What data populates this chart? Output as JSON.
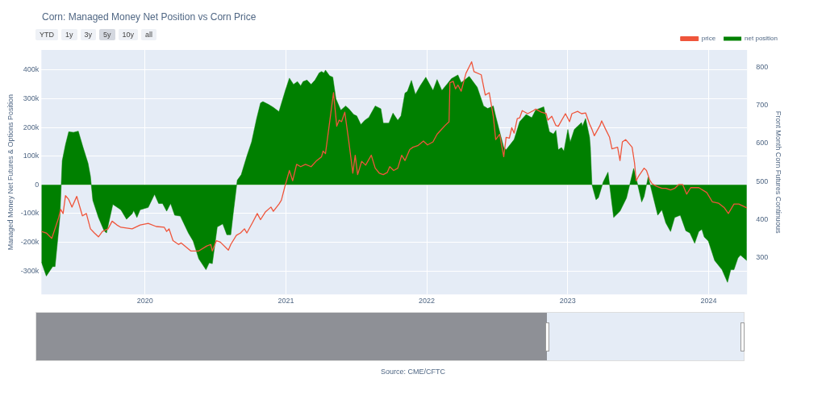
{
  "chart_data": {
    "type": "area",
    "title": "Corn: Managed Money Net Position vs Corn Price",
    "ylabel": "Managed Money Net Futures & Options Position",
    "y2label": "Front Month Corn Futures Continuous",
    "annotations": [
      "YTD",
      "1y",
      "3y",
      "5y",
      "10y",
      "all",
      "Source: CME/CFTC"
    ],
    "xlim": [
      2019.265,
      2024.273
    ],
    "xticks": [
      2020,
      2021,
      2022,
      2023,
      2024
    ],
    "ylim": [
      -382000,
      470000
    ],
    "yticks": [
      {
        "value": -300000,
        "label": "-300k"
      },
      {
        "value": -200000,
        "label": "-200k"
      },
      {
        "value": -100000,
        "label": "-100k"
      },
      0,
      {
        "value": 100000,
        "label": "100k"
      },
      {
        "value": 200000,
        "label": "200k"
      },
      {
        "value": 300000,
        "label": "300k"
      },
      {
        "value": 400000,
        "label": "400k"
      }
    ],
    "y2lim": [
      204,
      845
    ],
    "y2ticks": [
      300,
      400,
      500,
      600,
      700,
      800
    ],
    "grid": true,
    "legend": "top right",
    "marker": "none",
    "series": [
      {
        "name": "price",
        "type": "line",
        "axis": "y2",
        "color": "#ef553b",
        "x": [
          2019.265,
          2019.3,
          2019.339,
          2019.385,
          2019.402,
          2019.419,
          2019.436,
          2019.459,
          2019.482,
          2019.516,
          2019.556,
          2019.584,
          2019.613,
          2019.641,
          2019.67,
          2019.698,
          2019.738,
          2019.767,
          2019.801,
          2019.829,
          2019.909,
          2019.966,
          2020.023,
          2020.08,
          2020.137,
          2020.154,
          2020.171,
          2020.199,
          2020.239,
          2020.256,
          2020.325,
          2020.382,
          2020.439,
          2020.467,
          2020.478,
          2020.507,
          2020.535,
          2020.592,
          2020.609,
          2020.649,
          2020.678,
          2020.706,
          2020.723,
          2020.763,
          2020.797,
          2020.82,
          2020.854,
          2020.894,
          2020.911,
          2020.951,
          2020.968,
          2020.991,
          2021.025,
          2021.048,
          2021.076,
          2021.105,
          2021.139,
          2021.179,
          2021.219,
          2021.253,
          2021.264,
          2021.281,
          2021.338,
          2021.361,
          2021.378,
          2021.395,
          2021.418,
          2021.447,
          2021.475,
          2021.492,
          2021.509,
          2021.538,
          2021.566,
          2021.606,
          2021.634,
          2021.663,
          2021.691,
          2021.72,
          2021.737,
          2021.765,
          2021.794,
          2021.822,
          2021.845,
          2021.879,
          2021.902,
          2021.936,
          2021.976,
          2022.005,
          2022.044,
          2022.073,
          2022.09,
          2022.13,
          2022.158,
          2022.164,
          2022.187,
          2022.204,
          2022.221,
          2022.244,
          2022.278,
          2022.318,
          2022.335,
          2022.386,
          2022.415,
          2022.443,
          2022.472,
          2022.489,
          2022.517,
          2022.546,
          2022.563,
          2022.586,
          2022.603,
          2022.62,
          2022.642,
          2022.659,
          2022.677,
          2022.716,
          2022.756,
          2022.773,
          2022.813,
          2022.847,
          2022.859,
          2022.887,
          2022.916,
          2022.933,
          2022.984,
          2023.013,
          2023.03,
          2023.07,
          2023.098,
          2023.127,
          2023.155,
          2023.172,
          2023.189,
          2023.229,
          2023.241,
          2023.269,
          2023.297,
          2023.314,
          2023.354,
          2023.371,
          2023.388,
          2023.411,
          2023.457,
          2023.474,
          2023.486,
          2023.503,
          2023.542,
          2023.559,
          2023.582,
          2023.599,
          2023.628,
          2023.668,
          2023.696,
          2023.73,
          2023.759,
          2023.787,
          2023.816,
          2023.844,
          2023.873,
          2023.93,
          2023.987,
          2024.026,
          2024.072,
          2024.112,
          2024.14,
          2024.18,
          2024.214,
          2024.271
        ],
        "values": [
          369,
          365,
          351,
          402,
          427,
          416,
          463,
          453,
          433,
          461,
          410,
          416,
          376,
          365,
          355,
          369,
          376,
          396,
          386,
          380,
          376,
          386,
          390,
          382,
          380,
          369,
          376,
          345,
          335,
          339,
          318,
          318,
          331,
          335,
          318,
          345,
          341,
          320,
          335,
          359,
          365,
          376,
          365,
          392,
          416,
          400,
          420,
          433,
          422,
          441,
          451,
          484,
          529,
          502,
          545,
          539,
          545,
          539,
          555,
          565,
          580,
          573,
          733,
          645,
          661,
          657,
          682,
          604,
          522,
          569,
          518,
          553,
          543,
          569,
          535,
          522,
          518,
          524,
          539,
          529,
          535,
          569,
          555,
          584,
          590,
          594,
          606,
          596,
          604,
          624,
          631,
          647,
          657,
          759,
          763,
          743,
          753,
          737,
          784,
          814,
          788,
          780,
          727,
          733,
          671,
          610,
          624,
          565,
          616,
          614,
          641,
          627,
          665,
          667,
          686,
          678,
          686,
          690,
          682,
          678,
          661,
          671,
          647,
          645,
          678,
          657,
          678,
          684,
          678,
          680,
          651,
          637,
          620,
          647,
          659,
          637,
          616,
          586,
          590,
          555,
          604,
          610,
          590,
          549,
          502,
          514,
          535,
          529,
          504,
          494,
          488,
          482,
          482,
          478,
          482,
          492,
          492,
          467,
          484,
          484,
          471,
          447,
          443,
          431,
          416,
          441,
          441,
          431
        ]
      },
      {
        "name": "net position",
        "color": "#008000",
        "x": [
          2019.265,
          2019.3,
          2019.345,
          2019.362,
          2019.396,
          2019.413,
          2019.436,
          2019.459,
          2019.493,
          2019.527,
          2019.561,
          2019.596,
          2019.613,
          2019.63,
          2019.67,
          2019.71,
          2019.727,
          2019.772,
          2019.829,
          2019.869,
          2019.909,
          2019.92,
          2019.943,
          2019.966,
          2020.023,
          2020.068,
          2020.097,
          2020.125,
          2020.154,
          2020.182,
          2020.211,
          2020.251,
          2020.308,
          2020.342,
          2020.382,
          2020.433,
          2020.456,
          2020.478,
          2020.513,
          2020.552,
          2020.581,
          2020.609,
          2020.626,
          2020.655,
          2020.683,
          2020.723,
          2020.757,
          2020.792,
          2020.82,
          2020.837,
          2020.877,
          2020.911,
          2020.951,
          2020.997,
          2021.025,
          2021.054,
          2021.082,
          2021.105,
          2021.122,
          2021.15,
          2021.179,
          2021.207,
          2021.236,
          2021.253,
          2021.27,
          2021.281,
          2021.31,
          2021.333,
          2021.355,
          2021.39,
          2021.424,
          2021.447,
          2021.481,
          2021.503,
          2021.532,
          2021.56,
          2021.589,
          2021.606,
          2021.634,
          2021.674,
          2021.691,
          2021.731,
          2021.76,
          2021.794,
          2021.817,
          2021.845,
          2021.862,
          2021.891,
          2021.919,
          2021.953,
          2021.993,
          2022.044,
          2022.073,
          2022.107,
          2022.147,
          2022.175,
          2022.221,
          2022.244,
          2022.301,
          2022.358,
          2022.403,
          2022.432,
          2022.472,
          2022.489,
          2022.546,
          2022.563,
          2022.62,
          2022.659,
          2022.705,
          2022.745,
          2022.773,
          2022.83,
          2022.87,
          2022.899,
          2022.916,
          2022.933,
          2022.956,
          2022.973,
          2023.001,
          2023.018,
          2023.047,
          2023.098,
          2023.104,
          2023.127,
          2023.155,
          2023.161,
          2023.172,
          2023.201,
          2023.218,
          2023.252,
          2023.286,
          2023.326,
          2023.371,
          2023.417,
          2023.468,
          2023.497,
          2023.525,
          2023.542,
          2023.571,
          2023.588,
          2023.639,
          2023.668,
          2023.696,
          2023.73,
          2023.759,
          2023.799,
          2023.838,
          2023.867,
          2023.901,
          2023.93,
          2023.952,
          2023.969,
          2023.998,
          2024.043,
          2024.095,
          2024.134,
          2024.157,
          2024.18,
          2024.208,
          2024.226,
          2024.271
        ],
        "values": [
          -269000,
          -318000,
          -285000,
          -285000,
          -114000,
          84000,
          140000,
          185000,
          183000,
          187000,
          130000,
          75000,
          30000,
          -54000,
          -114000,
          -160000,
          -168000,
          -68000,
          -87000,
          -120000,
          -101000,
          -90000,
          -114000,
          -87000,
          -79000,
          -33000,
          -65000,
          -65000,
          -92000,
          -65000,
          -106000,
          -109000,
          -168000,
          -196000,
          -258000,
          -296000,
          -272000,
          -275000,
          -147000,
          -136000,
          -174000,
          -174000,
          -101000,
          16000,
          35000,
          100000,
          150000,
          230000,
          285000,
          290000,
          280000,
          270000,
          255000,
          330000,
          372000,
          350000,
          360000,
          345000,
          360000,
          365000,
          350000,
          365000,
          390000,
          395000,
          390000,
          400000,
          380000,
          375000,
          300000,
          260000,
          275000,
          265000,
          245000,
          240000,
          210000,
          225000,
          235000,
          250000,
          275000,
          265000,
          215000,
          215000,
          250000,
          225000,
          240000,
          320000,
          325000,
          364000,
          315000,
          345000,
          375000,
          329000,
          367000,
          329000,
          353000,
          370000,
          383000,
          356000,
          378000,
          340000,
          275000,
          266000,
          275000,
          239000,
          130000,
          122000,
          158000,
          220000,
          245000,
          234000,
          261000,
          272000,
          185000,
          177000,
          190000,
          122000,
          130000,
          117000,
          193000,
          149000,
          193000,
          217000,
          204000,
          231000,
          166000,
          130000,
          0,
          -52000,
          -45000,
          10000,
          44000,
          -114000,
          -92000,
          -46000,
          57000,
          0,
          -60000,
          -41000,
          27000,
          -5000,
          -106000,
          -87000,
          -133000,
          -163000,
          -114000,
          -106000,
          -160000,
          -168000,
          -204000,
          -163000,
          -155000,
          -182000,
          -196000,
          -264000,
          -296000,
          -340000,
          -296000,
          -296000,
          -255000,
          -245000,
          -264000
        ]
      }
    ]
  }
}
